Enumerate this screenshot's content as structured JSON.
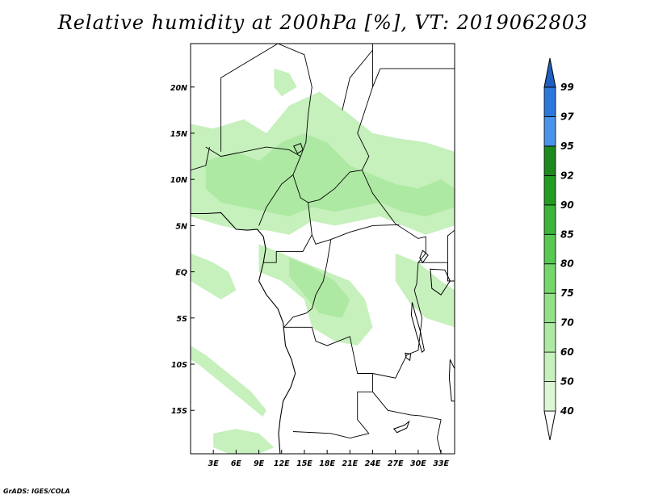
{
  "title": "Relative humidity at 200hPa [%], VT: 2019062803",
  "credit": "GrADS: IGES/COLA",
  "chart_data": {
    "type": "map",
    "variable": "Relative humidity",
    "level": "200hPa",
    "units": "%",
    "valid_time": "2019062803",
    "lon_range": [
      0,
      34.8
    ],
    "lat_range": [
      -19.7,
      24.7
    ],
    "x_ticks": [
      {
        "value": 3,
        "label": "3E"
      },
      {
        "value": 6,
        "label": "6E"
      },
      {
        "value": 9,
        "label": "9E"
      },
      {
        "value": 12,
        "label": "12E"
      },
      {
        "value": 15,
        "label": "15E"
      },
      {
        "value": 18,
        "label": "18E"
      },
      {
        "value": 21,
        "label": "21E"
      },
      {
        "value": 24,
        "label": "24E"
      },
      {
        "value": 27,
        "label": "27E"
      },
      {
        "value": 30,
        "label": "30E"
      },
      {
        "value": 33,
        "label": "33E"
      }
    ],
    "y_ticks": [
      {
        "value": 20,
        "label": "20N"
      },
      {
        "value": 15,
        "label": "15N"
      },
      {
        "value": 10,
        "label": "10N"
      },
      {
        "value": 5,
        "label": "5N"
      },
      {
        "value": 0,
        "label": "EQ"
      },
      {
        "value": -5,
        "label": "5S"
      },
      {
        "value": -10,
        "label": "10S"
      },
      {
        "value": -15,
        "label": "15S"
      }
    ],
    "colorbar": {
      "levels": [
        "40",
        "50",
        "60",
        "70",
        "75",
        "80",
        "85",
        "90",
        "92",
        "95",
        "97",
        "99"
      ],
      "colors": [
        "#f0fbee",
        "#dcf6d6",
        "#c6f0bc",
        "#ade9a2",
        "#92e087",
        "#75d66c",
        "#57c851",
        "#3cb53a",
        "#239c23",
        "#1e8a1e",
        "#4a93ea",
        "#2b78db",
        "#1f5fc0"
      ],
      "lower_color": "#ffffff"
    },
    "moist_regions": [
      {
        "name": "sahel-band",
        "level": "50",
        "lon_lat": [
          [
            0,
            16
          ],
          [
            3,
            15.5
          ],
          [
            7,
            16.5
          ],
          [
            10,
            15
          ],
          [
            13,
            18
          ],
          [
            17,
            19.5
          ],
          [
            21,
            17
          ],
          [
            24,
            15
          ],
          [
            27,
            14.5
          ],
          [
            31,
            14
          ],
          [
            34.8,
            13
          ],
          [
            34.8,
            5
          ],
          [
            31,
            4
          ],
          [
            28,
            5
          ],
          [
            25,
            6
          ],
          [
            22,
            5.5
          ],
          [
            19,
            5
          ],
          [
            16,
            5.5
          ],
          [
            13,
            4
          ],
          [
            10,
            4.5
          ],
          [
            7,
            4.5
          ],
          [
            4,
            5
          ],
          [
            0,
            6
          ]
        ]
      },
      {
        "name": "sahel-core",
        "level": "60",
        "lon_lat": [
          [
            2,
            12
          ],
          [
            6,
            13
          ],
          [
            9,
            12
          ],
          [
            12,
            14
          ],
          [
            15,
            15
          ],
          [
            18,
            14
          ],
          [
            21,
            11.5
          ],
          [
            24,
            10.5
          ],
          [
            27,
            9.5
          ],
          [
            30,
            9
          ],
          [
            33,
            10
          ],
          [
            34.8,
            9
          ],
          [
            34.8,
            7
          ],
          [
            31,
            6
          ],
          [
            28,
            6.5
          ],
          [
            25,
            7.5
          ],
          [
            22,
            7
          ],
          [
            19,
            6.5
          ],
          [
            16,
            7
          ],
          [
            13,
            6
          ],
          [
            10,
            6.5
          ],
          [
            7,
            7
          ],
          [
            4,
            7.5
          ],
          [
            2,
            9
          ]
        ]
      },
      {
        "name": "central-africa",
        "level": "50",
        "lon_lat": [
          [
            9,
            3
          ],
          [
            12,
            2
          ],
          [
            15,
            1
          ],
          [
            18,
            0
          ],
          [
            21,
            -1
          ],
          [
            23,
            -3
          ],
          [
            24,
            -6
          ],
          [
            22,
            -8
          ],
          [
            19,
            -7.5
          ],
          [
            16,
            -6
          ],
          [
            15,
            -3
          ],
          [
            12,
            -1
          ],
          [
            9,
            0
          ]
        ]
      },
      {
        "name": "central-core",
        "level": "60",
        "lon_lat": [
          [
            13,
            1.5
          ],
          [
            16,
            0.5
          ],
          [
            19,
            -1
          ],
          [
            21,
            -3
          ],
          [
            20,
            -5
          ],
          [
            17,
            -4.5
          ],
          [
            15,
            -2.5
          ],
          [
            13,
            -0.5
          ]
        ]
      },
      {
        "name": "east-lakes",
        "level": "50",
        "lon_lat": [
          [
            27,
            2
          ],
          [
            30,
            1
          ],
          [
            33,
            -1
          ],
          [
            34.8,
            -2
          ],
          [
            34.8,
            -6
          ],
          [
            31,
            -5
          ],
          [
            29,
            -3.5
          ],
          [
            27,
            -1
          ]
        ]
      },
      {
        "name": "west-coast",
        "level": "50",
        "lon_lat": [
          [
            0,
            2
          ],
          [
            3,
            1
          ],
          [
            5,
            0
          ],
          [
            6,
            -2
          ],
          [
            4,
            -3
          ],
          [
            2,
            -2
          ],
          [
            0,
            -1
          ]
        ]
      },
      {
        "name": "sw-streak",
        "level": "50",
        "lon_lat": [
          [
            0,
            -8
          ],
          [
            2,
            -9
          ],
          [
            5,
            -11
          ],
          [
            8,
            -13
          ],
          [
            10,
            -15
          ],
          [
            9.5,
            -15.7
          ],
          [
            7,
            -14
          ],
          [
            4,
            -12
          ],
          [
            1,
            -10
          ],
          [
            0,
            -9.5
          ]
        ]
      },
      {
        "name": "south-patch",
        "level": "50",
        "lon_lat": [
          [
            3,
            -17.5
          ],
          [
            6,
            -17
          ],
          [
            9,
            -17.5
          ],
          [
            11,
            -19
          ],
          [
            9,
            -19.7
          ],
          [
            5,
            -19.7
          ],
          [
            3,
            -19
          ]
        ]
      },
      {
        "name": "sahara-patch",
        "level": "50",
        "lon_lat": [
          [
            11,
            22
          ],
          [
            13,
            21.5
          ],
          [
            14,
            20
          ],
          [
            12,
            19
          ],
          [
            11,
            20
          ]
        ]
      }
    ],
    "coastline": [
      [
        0,
        6.3
      ],
      [
        2,
        6.3
      ],
      [
        4,
        6.4
      ],
      [
        6,
        4.6
      ],
      [
        7.5,
        4.5
      ],
      [
        8.8,
        4.6
      ],
      [
        9.6,
        3.8
      ],
      [
        9.9,
        2.5
      ],
      [
        9.6,
        1.0
      ],
      [
        9.3,
        0.0
      ],
      [
        9.0,
        -1.0
      ],
      [
        10.0,
        -2.5
      ],
      [
        11.5,
        -4.0
      ],
      [
        12.2,
        -5.5
      ],
      [
        12.5,
        -8.0
      ],
      [
        13.3,
        -9.5
      ],
      [
        13.8,
        -11.0
      ],
      [
        13.2,
        -12.5
      ],
      [
        12.2,
        -14.0
      ],
      [
        11.8,
        -16.0
      ],
      [
        11.6,
        -17.5
      ],
      [
        11.8,
        -19.7
      ]
    ],
    "borders": [
      [
        [
          2,
          13.5
        ],
        [
          4,
          12.5
        ],
        [
          7,
          13
        ],
        [
          10,
          13.5
        ],
        [
          13,
          13.2
        ],
        [
          14.5,
          12.5
        ]
      ],
      [
        [
          14.5,
          12.5
        ],
        [
          13.5,
          10.5
        ],
        [
          14.5,
          8
        ],
        [
          15.5,
          7.5
        ],
        [
          16,
          4
        ],
        [
          14.8,
          2.2
        ],
        [
          11.3,
          2.2
        ],
        [
          11.3,
          1
        ],
        [
          9.6,
          1
        ]
      ],
      [
        [
          14.5,
          12.5
        ],
        [
          15.2,
          14
        ],
        [
          15.5,
          17
        ],
        [
          16,
          20
        ],
        [
          15,
          23.5
        ],
        [
          11.5,
          24.7
        ]
      ],
      [
        [
          15.5,
          7.5
        ],
        [
          17,
          7.8
        ],
        [
          19,
          9
        ],
        [
          21,
          10.8
        ],
        [
          22.6,
          11
        ],
        [
          24,
          8.5
        ],
        [
          27,
          5.2
        ],
        [
          30,
          3.6
        ],
        [
          31,
          3.8
        ]
      ],
      [
        [
          16,
          4
        ],
        [
          16.5,
          3
        ],
        [
          18.5,
          3.5
        ],
        [
          21,
          4.3
        ],
        [
          24,
          5
        ],
        [
          27.5,
          5.1
        ]
      ],
      [
        [
          18.5,
          3.5
        ],
        [
          18,
          1
        ],
        [
          17.5,
          -1
        ],
        [
          16.5,
          -2.5
        ],
        [
          16,
          -4
        ],
        [
          15.2,
          -4.5
        ],
        [
          13.5,
          -4.9
        ],
        [
          12.3,
          -6
        ]
      ],
      [
        [
          22.6,
          11
        ],
        [
          23.5,
          12.5
        ],
        [
          22,
          15
        ],
        [
          24,
          20
        ],
        [
          25,
          22
        ]
      ],
      [
        [
          24,
          20
        ],
        [
          24,
          24.7
        ]
      ],
      [
        [
          25,
          22
        ],
        [
          34.8,
          22
        ]
      ],
      [
        [
          12.3,
          -6
        ],
        [
          16,
          -6
        ],
        [
          16.5,
          -7.5
        ],
        [
          18,
          -8
        ],
        [
          21,
          -7
        ],
        [
          22,
          -11
        ],
        [
          24,
          -11
        ],
        [
          24,
          -13
        ],
        [
          22,
          -13
        ],
        [
          22,
          -16
        ],
        [
          23.5,
          -17.5
        ],
        [
          21,
          -18
        ],
        [
          18.5,
          -17.5
        ],
        [
          13.5,
          -17.3
        ]
      ],
      [
        [
          24,
          -11
        ],
        [
          27,
          -11.5
        ],
        [
          28.5,
          -9
        ],
        [
          30,
          -8.5
        ],
        [
          30.5,
          -5
        ],
        [
          29.5,
          -2
        ],
        [
          29.8,
          -1.3
        ],
        [
          30,
          1
        ],
        [
          31,
          2
        ],
        [
          31,
          3.8
        ]
      ],
      [
        [
          24,
          -13
        ],
        [
          26,
          -15
        ],
        [
          29,
          -15.5
        ],
        [
          30.4,
          -15.6
        ],
        [
          33,
          -16
        ],
        [
          32.5,
          -18
        ],
        [
          33,
          -19.7
        ]
      ],
      [
        [
          34.8,
          -1
        ],
        [
          33.9,
          -1
        ],
        [
          33.9,
          3.9
        ],
        [
          34.8,
          4.5
        ]
      ],
      [
        [
          30,
          1
        ],
        [
          33.9,
          1
        ],
        [
          33.9,
          -1
        ]
      ],
      [
        [
          0,
          11
        ],
        [
          2,
          11.5
        ],
        [
          2.5,
          13.5
        ]
      ],
      [
        [
          20,
          17.5
        ],
        [
          21,
          21
        ],
        [
          24,
          24
        ]
      ],
      [
        [
          4,
          13
        ],
        [
          4,
          21
        ],
        [
          11.5,
          24.7
        ]
      ],
      [
        [
          9,
          5
        ],
        [
          10,
          7
        ],
        [
          12,
          9.5
        ],
        [
          13.5,
          10.5
        ]
      ]
    ],
    "lakes": [
      {
        "name": "lake-victoria",
        "lon_lat": [
          [
            31.6,
            0.3
          ],
          [
            33.5,
            0.2
          ],
          [
            34.2,
            -1
          ],
          [
            33,
            -2.5
          ],
          [
            31.8,
            -1.8
          ]
        ]
      },
      {
        "name": "lake-tanganyika",
        "lon_lat": [
          [
            29.2,
            -3.3
          ],
          [
            29.6,
            -4.5
          ],
          [
            30.3,
            -6.5
          ],
          [
            30.8,
            -8.5
          ],
          [
            30.5,
            -8.7
          ],
          [
            29.8,
            -6.8
          ],
          [
            29.1,
            -4.7
          ]
        ]
      },
      {
        "name": "lake-malawi",
        "lon_lat": [
          [
            34.2,
            -9.5
          ],
          [
            34.8,
            -10.5
          ],
          [
            34.8,
            -14
          ],
          [
            34.4,
            -14
          ],
          [
            34.1,
            -11.5
          ]
        ]
      },
      {
        "name": "lake-chad",
        "lon_lat": [
          [
            13.6,
            13.6
          ],
          [
            14.5,
            13.9
          ],
          [
            14.8,
            13.2
          ],
          [
            14.1,
            12.8
          ]
        ]
      },
      {
        "name": "lake-albert",
        "lon_lat": [
          [
            30.6,
            2.3
          ],
          [
            31.3,
            1.8
          ],
          [
            30.6,
            1.0
          ],
          [
            30.2,
            1.5
          ]
        ]
      },
      {
        "name": "lake-mweru",
        "lon_lat": [
          [
            28.3,
            -8.8
          ],
          [
            29,
            -8.9
          ],
          [
            28.9,
            -9.6
          ],
          [
            28.4,
            -9.3
          ]
        ]
      },
      {
        "name": "lake-kariba",
        "lon_lat": [
          [
            26.8,
            -17
          ],
          [
            28.2,
            -16.6
          ],
          [
            28.8,
            -16.2
          ],
          [
            28.5,
            -16.9
          ],
          [
            27.2,
            -17.4
          ]
        ]
      }
    ]
  }
}
